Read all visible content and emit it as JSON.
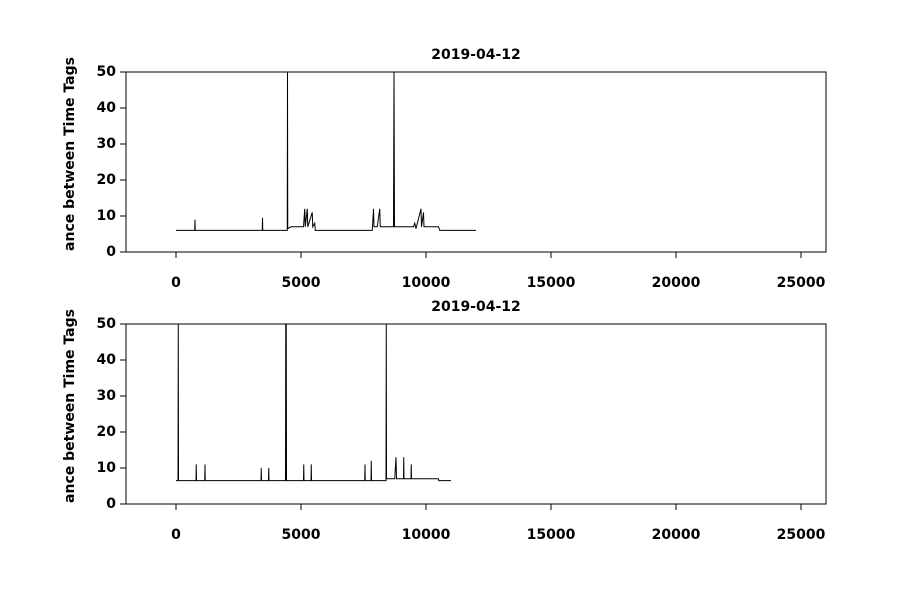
{
  "chart_data": [
    {
      "type": "line",
      "title": "2019-04-12",
      "y_label": "ance between Time Tags",
      "color": "#000000",
      "x": [
        0,
        750,
        760,
        770,
        3450,
        3460,
        3470,
        4450,
        4460,
        4470,
        4600,
        5100,
        5150,
        5170,
        5250,
        5270,
        5450,
        5470,
        5550,
        5570,
        7850,
        7900,
        7920,
        8050,
        8150,
        8170,
        8700,
        8720,
        8740,
        9500,
        9550,
        9600,
        9800,
        9820,
        9900,
        9920,
        10500,
        10550,
        12000
      ],
      "values": [
        6,
        6,
        9,
        6,
        6,
        9.5,
        6,
        6,
        50,
        6.5,
        7,
        7,
        12,
        7,
        12,
        7,
        11,
        7,
        8,
        6,
        6,
        12,
        7,
        7,
        12,
        7,
        7,
        50,
        7,
        7,
        8,
        6.5,
        12,
        7,
        11,
        7,
        7,
        6,
        6
      ],
      "xlim": [
        -2000,
        26000
      ],
      "ylim": [
        0,
        50
      ],
      "xticks": [
        0,
        5000,
        10000,
        15000,
        20000,
        25000
      ],
      "yticks": [
        0,
        10,
        20,
        30,
        40,
        50
      ]
    },
    {
      "type": "line",
      "title": "2019-04-12",
      "y_label": "ance between Time Tags",
      "color": "#000000",
      "x": [
        0,
        80,
        90,
        100,
        800,
        810,
        820,
        1150,
        1160,
        1170,
        3400,
        3410,
        3420,
        3700,
        3710,
        3720,
        4380,
        4390,
        4410,
        4420,
        5100,
        5110,
        5120,
        5400,
        5410,
        5420,
        7550,
        7560,
        7570,
        7800,
        7810,
        7820,
        8400,
        8410,
        8420,
        8750,
        8800,
        8820,
        9100,
        9110,
        9120,
        9400,
        9410,
        9420,
        10500,
        10510,
        11000
      ],
      "values": [
        6.5,
        6.5,
        50,
        6.5,
        6.5,
        11,
        6.5,
        6.5,
        11,
        6.5,
        6.5,
        10,
        6.5,
        6.5,
        10,
        6.5,
        6.5,
        50,
        50,
        6.5,
        6.5,
        11,
        6.5,
        6.5,
        11,
        6.5,
        6.5,
        11,
        6.5,
        6.5,
        12,
        6.5,
        6.5,
        50,
        7,
        7,
        13,
        7,
        7,
        13,
        7,
        7,
        11,
        7,
        7,
        6.5,
        6.5
      ],
      "xlim": [
        -2000,
        26000
      ],
      "ylim": [
        0,
        50
      ],
      "xticks": [
        0,
        5000,
        10000,
        15000,
        20000,
        25000
      ],
      "yticks": [
        0,
        10,
        20,
        30,
        40,
        50
      ]
    }
  ]
}
